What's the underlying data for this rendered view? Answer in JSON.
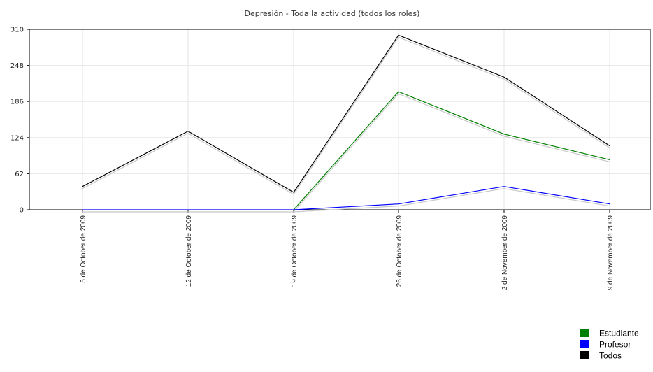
{
  "chart_data": {
    "type": "line",
    "title": "Depresión - Toda la actividad (todos los roles)",
    "xlabel": "",
    "ylabel": "",
    "categories": [
      "5 de October de 2009",
      "12 de October de 2009",
      "19 de October de 2009",
      "26 de October de 2009",
      "2 de November de 2009",
      "9 de November de 2009"
    ],
    "y_ticks": [
      "0",
      "62",
      "124",
      "186",
      "248",
      "310"
    ],
    "ylim": [
      0,
      310
    ],
    "grid": true,
    "legend_position": "bottom-right",
    "series": [
      {
        "name": "Estudiante",
        "color": "#008000",
        "values": [
          null,
          null,
          0,
          203,
          130,
          86
        ]
      },
      {
        "name": "Profesor",
        "color": "#0000ff",
        "values": [
          0,
          0,
          0,
          10,
          40,
          10
        ]
      },
      {
        "name": "Todos",
        "color": "#000000",
        "values": [
          40,
          135,
          30,
          300,
          228,
          110
        ]
      }
    ],
    "shadow_color": "#c8c8c8"
  }
}
